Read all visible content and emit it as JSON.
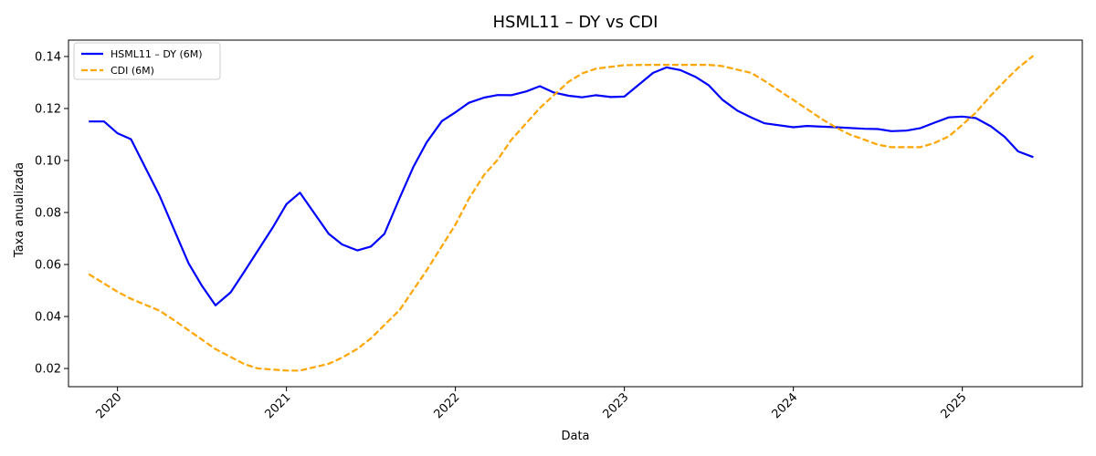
{
  "chart_data": {
    "type": "line",
    "title": "HSML11 – DY vs CDI",
    "xlabel": "Data",
    "ylabel": "Taxa anualizada",
    "xlim": [
      2019.71,
      2025.71
    ],
    "ylim": [
      0.013,
      0.1463
    ],
    "x_ticks": [
      2020,
      2021,
      2022,
      2023,
      2024,
      2025
    ],
    "x_tick_labels": [
      "2020",
      "2021",
      "2022",
      "2023",
      "2024",
      "2025"
    ],
    "y_ticks": [
      0.02,
      0.04,
      0.06,
      0.08,
      0.1,
      0.12,
      0.14
    ],
    "y_tick_labels": [
      "0.02",
      "0.04",
      "0.06",
      "0.08",
      "0.10",
      "0.12",
      "0.14"
    ],
    "legend_position": "top-left",
    "grid": false,
    "series": [
      {
        "name": "HSML11 – DY (6M)",
        "color": "#0000ff",
        "style": "solid",
        "x": [
          2019.83,
          2019.92,
          2020.0,
          2020.08,
          2020.25,
          2020.42,
          2020.5,
          2020.58,
          2020.67,
          2020.75,
          2020.92,
          2021.0,
          2021.08,
          2021.25,
          2021.33,
          2021.42,
          2021.5,
          2021.58,
          2021.67,
          2021.75,
          2021.83,
          2021.92,
          2022.0,
          2022.08,
          2022.17,
          2022.25,
          2022.33,
          2022.42,
          2022.5,
          2022.58,
          2022.67,
          2022.75,
          2022.83,
          2022.92,
          2023.0,
          2023.17,
          2023.25,
          2023.33,
          2023.42,
          2023.5,
          2023.58,
          2023.67,
          2023.75,
          2023.83,
          2024.0,
          2024.08,
          2024.25,
          2024.42,
          2024.5,
          2024.58,
          2024.67,
          2024.75,
          2024.83,
          2024.92,
          2025.0,
          2025.08,
          2025.17,
          2025.25,
          2025.33,
          2025.42
        ],
        "values": [
          0.115,
          0.115,
          0.1105,
          0.1082,
          0.0863,
          0.0605,
          0.0518,
          0.0443,
          0.0493,
          0.0572,
          0.0744,
          0.0832,
          0.0876,
          0.0718,
          0.0677,
          0.0654,
          0.0669,
          0.0718,
          0.0856,
          0.0974,
          0.107,
          0.1152,
          0.1185,
          0.1222,
          0.1242,
          0.1252,
          0.1251,
          0.1266,
          0.1286,
          0.1262,
          0.1249,
          0.1243,
          0.1251,
          0.1244,
          0.1246,
          0.1337,
          0.1358,
          0.1348,
          0.1322,
          0.1289,
          0.1234,
          0.1191,
          0.1166,
          0.1143,
          0.1128,
          0.1133,
          0.1128,
          0.1122,
          0.1121,
          0.1113,
          0.1115,
          0.1124,
          0.1144,
          0.1166,
          0.1169,
          0.1163,
          0.1131,
          0.1091,
          0.1035,
          0.1013
        ]
      },
      {
        "name": "CDI (6M)",
        "color": "#ffa500",
        "style": "dashed",
        "x": [
          2019.83,
          2020.0,
          2020.08,
          2020.25,
          2020.33,
          2020.42,
          2020.58,
          2020.75,
          2020.83,
          2021.0,
          2021.08,
          2021.25,
          2021.33,
          2021.42,
          2021.5,
          2021.67,
          2021.83,
          2022.0,
          2022.08,
          2022.17,
          2022.25,
          2022.33,
          2022.5,
          2022.67,
          2022.75,
          2022.83,
          2023.0,
          2023.17,
          2023.25,
          2023.5,
          2023.58,
          2023.75,
          2023.83,
          2024.0,
          2024.08,
          2024.17,
          2024.25,
          2024.33,
          2024.42,
          2024.5,
          2024.58,
          2024.67,
          2024.75,
          2024.83,
          2024.92,
          2025.0,
          2025.08,
          2025.17,
          2025.25,
          2025.33,
          2025.42
        ],
        "values": [
          0.0563,
          0.0495,
          0.0468,
          0.0422,
          0.0388,
          0.0347,
          0.0275,
          0.0217,
          0.02,
          0.0192,
          0.0192,
          0.0218,
          0.0242,
          0.0276,
          0.0316,
          0.0425,
          0.0578,
          0.0753,
          0.0853,
          0.0945,
          0.1003,
          0.1079,
          0.1202,
          0.1303,
          0.1335,
          0.1353,
          0.1367,
          0.1368,
          0.1368,
          0.1368,
          0.1363,
          0.1337,
          0.1306,
          0.1233,
          0.1198,
          0.1159,
          0.1128,
          0.1101,
          0.108,
          0.1061,
          0.1051,
          0.1051,
          0.1051,
          0.1066,
          0.1093,
          0.1137,
          0.1184,
          0.1251,
          0.1305,
          0.1356,
          0.1403
        ]
      }
    ]
  }
}
